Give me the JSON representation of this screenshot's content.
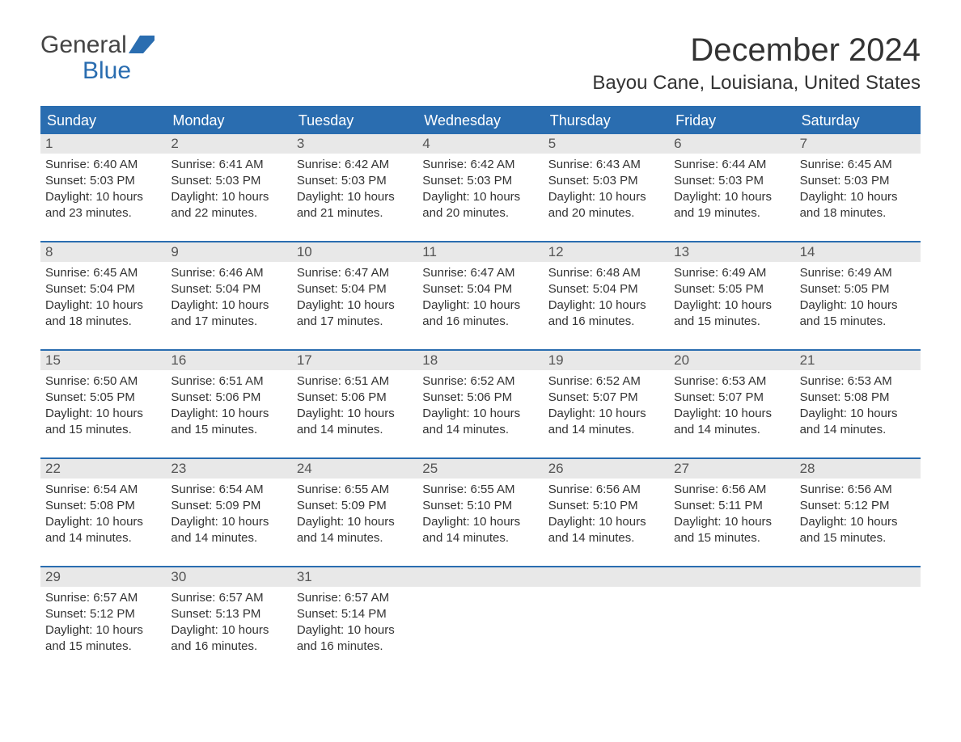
{
  "logo": {
    "general": "General",
    "blue": "Blue"
  },
  "title": "December 2024",
  "location": "Bayou Cane, Louisiana, United States",
  "colors": {
    "brand_blue": "#2a6db0",
    "header_text": "#ffffff",
    "daynum_bg": "#e8e8e8",
    "text": "#333333",
    "bg": "#ffffff"
  },
  "day_headers": [
    "Sunday",
    "Monday",
    "Tuesday",
    "Wednesday",
    "Thursday",
    "Friday",
    "Saturday"
  ],
  "weeks": [
    [
      {
        "num": "1",
        "sunrise": "Sunrise: 6:40 AM",
        "sunset": "Sunset: 5:03 PM",
        "daylight": "Daylight: 10 hours and 23 minutes."
      },
      {
        "num": "2",
        "sunrise": "Sunrise: 6:41 AM",
        "sunset": "Sunset: 5:03 PM",
        "daylight": "Daylight: 10 hours and 22 minutes."
      },
      {
        "num": "3",
        "sunrise": "Sunrise: 6:42 AM",
        "sunset": "Sunset: 5:03 PM",
        "daylight": "Daylight: 10 hours and 21 minutes."
      },
      {
        "num": "4",
        "sunrise": "Sunrise: 6:42 AM",
        "sunset": "Sunset: 5:03 PM",
        "daylight": "Daylight: 10 hours and 20 minutes."
      },
      {
        "num": "5",
        "sunrise": "Sunrise: 6:43 AM",
        "sunset": "Sunset: 5:03 PM",
        "daylight": "Daylight: 10 hours and 20 minutes."
      },
      {
        "num": "6",
        "sunrise": "Sunrise: 6:44 AM",
        "sunset": "Sunset: 5:03 PM",
        "daylight": "Daylight: 10 hours and 19 minutes."
      },
      {
        "num": "7",
        "sunrise": "Sunrise: 6:45 AM",
        "sunset": "Sunset: 5:03 PM",
        "daylight": "Daylight: 10 hours and 18 minutes."
      }
    ],
    [
      {
        "num": "8",
        "sunrise": "Sunrise: 6:45 AM",
        "sunset": "Sunset: 5:04 PM",
        "daylight": "Daylight: 10 hours and 18 minutes."
      },
      {
        "num": "9",
        "sunrise": "Sunrise: 6:46 AM",
        "sunset": "Sunset: 5:04 PM",
        "daylight": "Daylight: 10 hours and 17 minutes."
      },
      {
        "num": "10",
        "sunrise": "Sunrise: 6:47 AM",
        "sunset": "Sunset: 5:04 PM",
        "daylight": "Daylight: 10 hours and 17 minutes."
      },
      {
        "num": "11",
        "sunrise": "Sunrise: 6:47 AM",
        "sunset": "Sunset: 5:04 PM",
        "daylight": "Daylight: 10 hours and 16 minutes."
      },
      {
        "num": "12",
        "sunrise": "Sunrise: 6:48 AM",
        "sunset": "Sunset: 5:04 PM",
        "daylight": "Daylight: 10 hours and 16 minutes."
      },
      {
        "num": "13",
        "sunrise": "Sunrise: 6:49 AM",
        "sunset": "Sunset: 5:05 PM",
        "daylight": "Daylight: 10 hours and 15 minutes."
      },
      {
        "num": "14",
        "sunrise": "Sunrise: 6:49 AM",
        "sunset": "Sunset: 5:05 PM",
        "daylight": "Daylight: 10 hours and 15 minutes."
      }
    ],
    [
      {
        "num": "15",
        "sunrise": "Sunrise: 6:50 AM",
        "sunset": "Sunset: 5:05 PM",
        "daylight": "Daylight: 10 hours and 15 minutes."
      },
      {
        "num": "16",
        "sunrise": "Sunrise: 6:51 AM",
        "sunset": "Sunset: 5:06 PM",
        "daylight": "Daylight: 10 hours and 15 minutes."
      },
      {
        "num": "17",
        "sunrise": "Sunrise: 6:51 AM",
        "sunset": "Sunset: 5:06 PM",
        "daylight": "Daylight: 10 hours and 14 minutes."
      },
      {
        "num": "18",
        "sunrise": "Sunrise: 6:52 AM",
        "sunset": "Sunset: 5:06 PM",
        "daylight": "Daylight: 10 hours and 14 minutes."
      },
      {
        "num": "19",
        "sunrise": "Sunrise: 6:52 AM",
        "sunset": "Sunset: 5:07 PM",
        "daylight": "Daylight: 10 hours and 14 minutes."
      },
      {
        "num": "20",
        "sunrise": "Sunrise: 6:53 AM",
        "sunset": "Sunset: 5:07 PM",
        "daylight": "Daylight: 10 hours and 14 minutes."
      },
      {
        "num": "21",
        "sunrise": "Sunrise: 6:53 AM",
        "sunset": "Sunset: 5:08 PM",
        "daylight": "Daylight: 10 hours and 14 minutes."
      }
    ],
    [
      {
        "num": "22",
        "sunrise": "Sunrise: 6:54 AM",
        "sunset": "Sunset: 5:08 PM",
        "daylight": "Daylight: 10 hours and 14 minutes."
      },
      {
        "num": "23",
        "sunrise": "Sunrise: 6:54 AM",
        "sunset": "Sunset: 5:09 PM",
        "daylight": "Daylight: 10 hours and 14 minutes."
      },
      {
        "num": "24",
        "sunrise": "Sunrise: 6:55 AM",
        "sunset": "Sunset: 5:09 PM",
        "daylight": "Daylight: 10 hours and 14 minutes."
      },
      {
        "num": "25",
        "sunrise": "Sunrise: 6:55 AM",
        "sunset": "Sunset: 5:10 PM",
        "daylight": "Daylight: 10 hours and 14 minutes."
      },
      {
        "num": "26",
        "sunrise": "Sunrise: 6:56 AM",
        "sunset": "Sunset: 5:10 PM",
        "daylight": "Daylight: 10 hours and 14 minutes."
      },
      {
        "num": "27",
        "sunrise": "Sunrise: 6:56 AM",
        "sunset": "Sunset: 5:11 PM",
        "daylight": "Daylight: 10 hours and 15 minutes."
      },
      {
        "num": "28",
        "sunrise": "Sunrise: 6:56 AM",
        "sunset": "Sunset: 5:12 PM",
        "daylight": "Daylight: 10 hours and 15 minutes."
      }
    ],
    [
      {
        "num": "29",
        "sunrise": "Sunrise: 6:57 AM",
        "sunset": "Sunset: 5:12 PM",
        "daylight": "Daylight: 10 hours and 15 minutes."
      },
      {
        "num": "30",
        "sunrise": "Sunrise: 6:57 AM",
        "sunset": "Sunset: 5:13 PM",
        "daylight": "Daylight: 10 hours and 16 minutes."
      },
      {
        "num": "31",
        "sunrise": "Sunrise: 6:57 AM",
        "sunset": "Sunset: 5:14 PM",
        "daylight": "Daylight: 10 hours and 16 minutes."
      },
      null,
      null,
      null,
      null
    ]
  ]
}
